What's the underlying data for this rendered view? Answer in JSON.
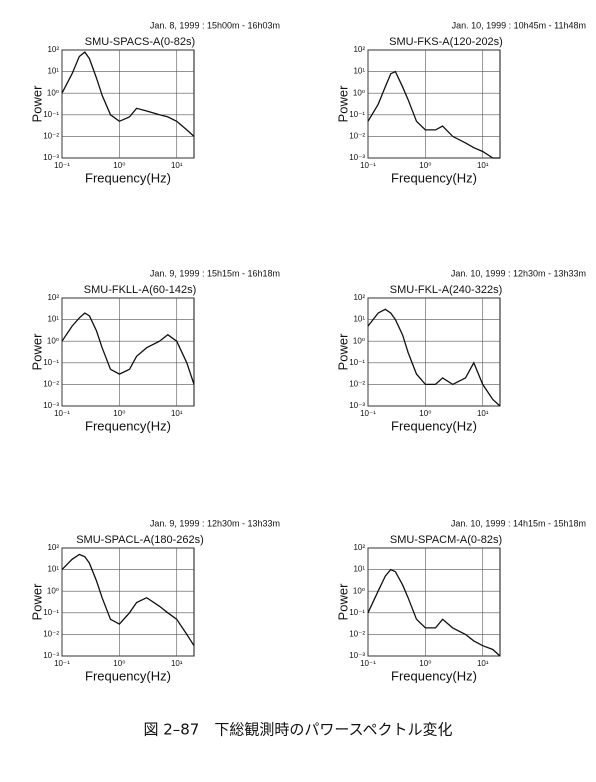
{
  "chart_data": [
    {
      "type": "line",
      "subtitle": "Jan. 8, 1999 : 15h00m - 16h03m",
      "title": "SMU-SPACS-A(0-82s)",
      "xlabel": "Frequency(Hz)",
      "ylabel": "Power",
      "xscale": "log",
      "yscale": "log",
      "grid": true,
      "xlim": [
        0.1,
        20
      ],
      "ylim": [
        0.001,
        100
      ],
      "xticks": [
        {
          "value": 0.1,
          "label": "10⁻¹"
        },
        {
          "value": 1,
          "label": "10⁰"
        },
        {
          "value": 10,
          "label": "10¹"
        }
      ],
      "yticks": [
        {
          "value": 0.001,
          "label": "10⁻³"
        },
        {
          "value": 0.01,
          "label": "10⁻²"
        },
        {
          "value": 0.1,
          "label": "10⁻¹"
        },
        {
          "value": 1,
          "label": "10⁰"
        },
        {
          "value": 10,
          "label": "10¹"
        },
        {
          "value": 100,
          "label": "10²"
        }
      ],
      "x": [
        0.1,
        0.15,
        0.2,
        0.25,
        0.3,
        0.4,
        0.5,
        0.7,
        1,
        1.5,
        2,
        3,
        5,
        7,
        10,
        15,
        20
      ],
      "series": [
        {
          "color": "#111111",
          "values": [
            1,
            8,
            50,
            80,
            40,
            5,
            0.8,
            0.1,
            0.05,
            0.08,
            0.2,
            0.15,
            0.1,
            0.08,
            0.05,
            0.02,
            0.01
          ]
        }
      ]
    },
    {
      "type": "line",
      "subtitle": "Jan. 10, 1999 : 10h45m - 11h48m",
      "title": "SMU-FKS-A(120-202s)",
      "xlabel": "Frequency(Hz)",
      "ylabel": "Power",
      "xscale": "log",
      "yscale": "log",
      "grid": true,
      "xlim": [
        0.1,
        20
      ],
      "ylim": [
        0.001,
        100
      ],
      "xticks": [
        {
          "value": 0.1,
          "label": "10⁻¹"
        },
        {
          "value": 1,
          "label": "10⁰"
        },
        {
          "value": 10,
          "label": "10¹"
        }
      ],
      "yticks": [
        {
          "value": 0.001,
          "label": "10⁻³"
        },
        {
          "value": 0.01,
          "label": "10⁻²"
        },
        {
          "value": 0.1,
          "label": "10⁻¹"
        },
        {
          "value": 1,
          "label": "10⁰"
        },
        {
          "value": 10,
          "label": "10¹"
        },
        {
          "value": 100,
          "label": "10²"
        }
      ],
      "x": [
        0.1,
        0.15,
        0.2,
        0.25,
        0.3,
        0.4,
        0.5,
        0.7,
        1,
        1.5,
        2,
        3,
        5,
        7,
        10,
        15,
        20
      ],
      "series": [
        {
          "color": "#111111",
          "values": [
            0.05,
            0.3,
            2,
            8,
            10,
            2,
            0.5,
            0.05,
            0.02,
            0.02,
            0.03,
            0.01,
            0.005,
            0.003,
            0.002,
            0.001,
            0.001
          ]
        }
      ]
    },
    {
      "type": "line",
      "subtitle": "Jan. 9, 1999 : 15h15m - 16h18m",
      "title": "SMU-FKLL-A(60-142s)",
      "xlabel": "Frequency(Hz)",
      "ylabel": "Power",
      "xscale": "log",
      "yscale": "log",
      "grid": true,
      "xlim": [
        0.1,
        20
      ],
      "ylim": [
        0.001,
        100
      ],
      "xticks": [
        {
          "value": 0.1,
          "label": "10⁻¹"
        },
        {
          "value": 1,
          "label": "10⁰"
        },
        {
          "value": 10,
          "label": "10¹"
        }
      ],
      "yticks": [
        {
          "value": 0.001,
          "label": "10⁻³"
        },
        {
          "value": 0.01,
          "label": "10⁻²"
        },
        {
          "value": 0.1,
          "label": "10⁻¹"
        },
        {
          "value": 1,
          "label": "10⁰"
        },
        {
          "value": 10,
          "label": "10¹"
        },
        {
          "value": 100,
          "label": "10²"
        }
      ],
      "x": [
        0.1,
        0.15,
        0.2,
        0.25,
        0.3,
        0.4,
        0.5,
        0.7,
        1,
        1.5,
        2,
        3,
        5,
        7,
        10,
        15,
        20
      ],
      "series": [
        {
          "color": "#111111",
          "values": [
            1,
            5,
            12,
            20,
            15,
            3,
            0.5,
            0.05,
            0.03,
            0.05,
            0.2,
            0.5,
            1,
            2,
            1,
            0.1,
            0.01
          ]
        }
      ]
    },
    {
      "type": "line",
      "subtitle": "Jan. 10, 1999 : 12h30m - 13h33m",
      "title": "SMU-FKL-A(240-322s)",
      "xlabel": "Frequency(Hz)",
      "ylabel": "Power",
      "xscale": "log",
      "yscale": "log",
      "grid": true,
      "xlim": [
        0.1,
        20
      ],
      "ylim": [
        0.001,
        100
      ],
      "xticks": [
        {
          "value": 0.1,
          "label": "10⁻¹"
        },
        {
          "value": 1,
          "label": "10⁰"
        },
        {
          "value": 10,
          "label": "10¹"
        }
      ],
      "yticks": [
        {
          "value": 0.001,
          "label": "10⁻³"
        },
        {
          "value": 0.01,
          "label": "10⁻²"
        },
        {
          "value": 0.1,
          "label": "10⁻¹"
        },
        {
          "value": 1,
          "label": "10⁰"
        },
        {
          "value": 10,
          "label": "10¹"
        },
        {
          "value": 100,
          "label": "10²"
        }
      ],
      "x": [
        0.1,
        0.15,
        0.2,
        0.25,
        0.3,
        0.4,
        0.5,
        0.7,
        1,
        1.5,
        2,
        3,
        5,
        7,
        10,
        15,
        20
      ],
      "series": [
        {
          "color": "#111111",
          "values": [
            5,
            20,
            30,
            20,
            10,
            2,
            0.3,
            0.03,
            0.01,
            0.01,
            0.02,
            0.01,
            0.02,
            0.1,
            0.01,
            0.002,
            0.001
          ]
        }
      ]
    },
    {
      "type": "line",
      "subtitle": "Jan. 9, 1999 : 12h30m - 13h33m",
      "title": "SMU-SPACL-A(180-262s)",
      "xlabel": "Frequency(Hz)",
      "ylabel": "Power",
      "xscale": "log",
      "yscale": "log",
      "grid": true,
      "xlim": [
        0.1,
        20
      ],
      "ylim": [
        0.001,
        100
      ],
      "xticks": [
        {
          "value": 0.1,
          "label": "10⁻¹"
        },
        {
          "value": 1,
          "label": "10⁰"
        },
        {
          "value": 10,
          "label": "10¹"
        }
      ],
      "yticks": [
        {
          "value": 0.001,
          "label": "10⁻³"
        },
        {
          "value": 0.01,
          "label": "10⁻²"
        },
        {
          "value": 0.1,
          "label": "10⁻¹"
        },
        {
          "value": 1,
          "label": "10⁰"
        },
        {
          "value": 10,
          "label": "10¹"
        },
        {
          "value": 100,
          "label": "10²"
        }
      ],
      "x": [
        0.1,
        0.15,
        0.2,
        0.25,
        0.3,
        0.4,
        0.5,
        0.7,
        1,
        1.5,
        2,
        3,
        5,
        7,
        10,
        15,
        20
      ],
      "series": [
        {
          "color": "#111111",
          "values": [
            10,
            30,
            50,
            40,
            20,
            3,
            0.5,
            0.05,
            0.03,
            0.1,
            0.3,
            0.5,
            0.2,
            0.1,
            0.05,
            0.01,
            0.003
          ]
        }
      ]
    },
    {
      "type": "line",
      "subtitle": "Jan. 10, 1999 : 14h15m - 15h18m",
      "title": "SMU-SPACM-A(0-82s)",
      "xlabel": "Frequency(Hz)",
      "ylabel": "Power",
      "xscale": "log",
      "yscale": "log",
      "grid": true,
      "xlim": [
        0.1,
        20
      ],
      "ylim": [
        0.001,
        100
      ],
      "xticks": [
        {
          "value": 0.1,
          "label": "10⁻¹"
        },
        {
          "value": 1,
          "label": "10⁰"
        },
        {
          "value": 10,
          "label": "10¹"
        }
      ],
      "yticks": [
        {
          "value": 0.001,
          "label": "10⁻³"
        },
        {
          "value": 0.01,
          "label": "10⁻²"
        },
        {
          "value": 0.1,
          "label": "10⁻¹"
        },
        {
          "value": 1,
          "label": "10⁰"
        },
        {
          "value": 10,
          "label": "10¹"
        },
        {
          "value": 100,
          "label": "10²"
        }
      ],
      "x": [
        0.1,
        0.15,
        0.2,
        0.25,
        0.3,
        0.4,
        0.5,
        0.7,
        1,
        1.5,
        2,
        3,
        5,
        7,
        10,
        15,
        20
      ],
      "series": [
        {
          "color": "#111111",
          "values": [
            0.1,
            1,
            5,
            10,
            8,
            2,
            0.5,
            0.05,
            0.02,
            0.02,
            0.05,
            0.02,
            0.01,
            0.005,
            0.003,
            0.002,
            0.001
          ]
        }
      ]
    }
  ],
  "caption": "図 2–87　下総観測時のパワースペクトル変化"
}
